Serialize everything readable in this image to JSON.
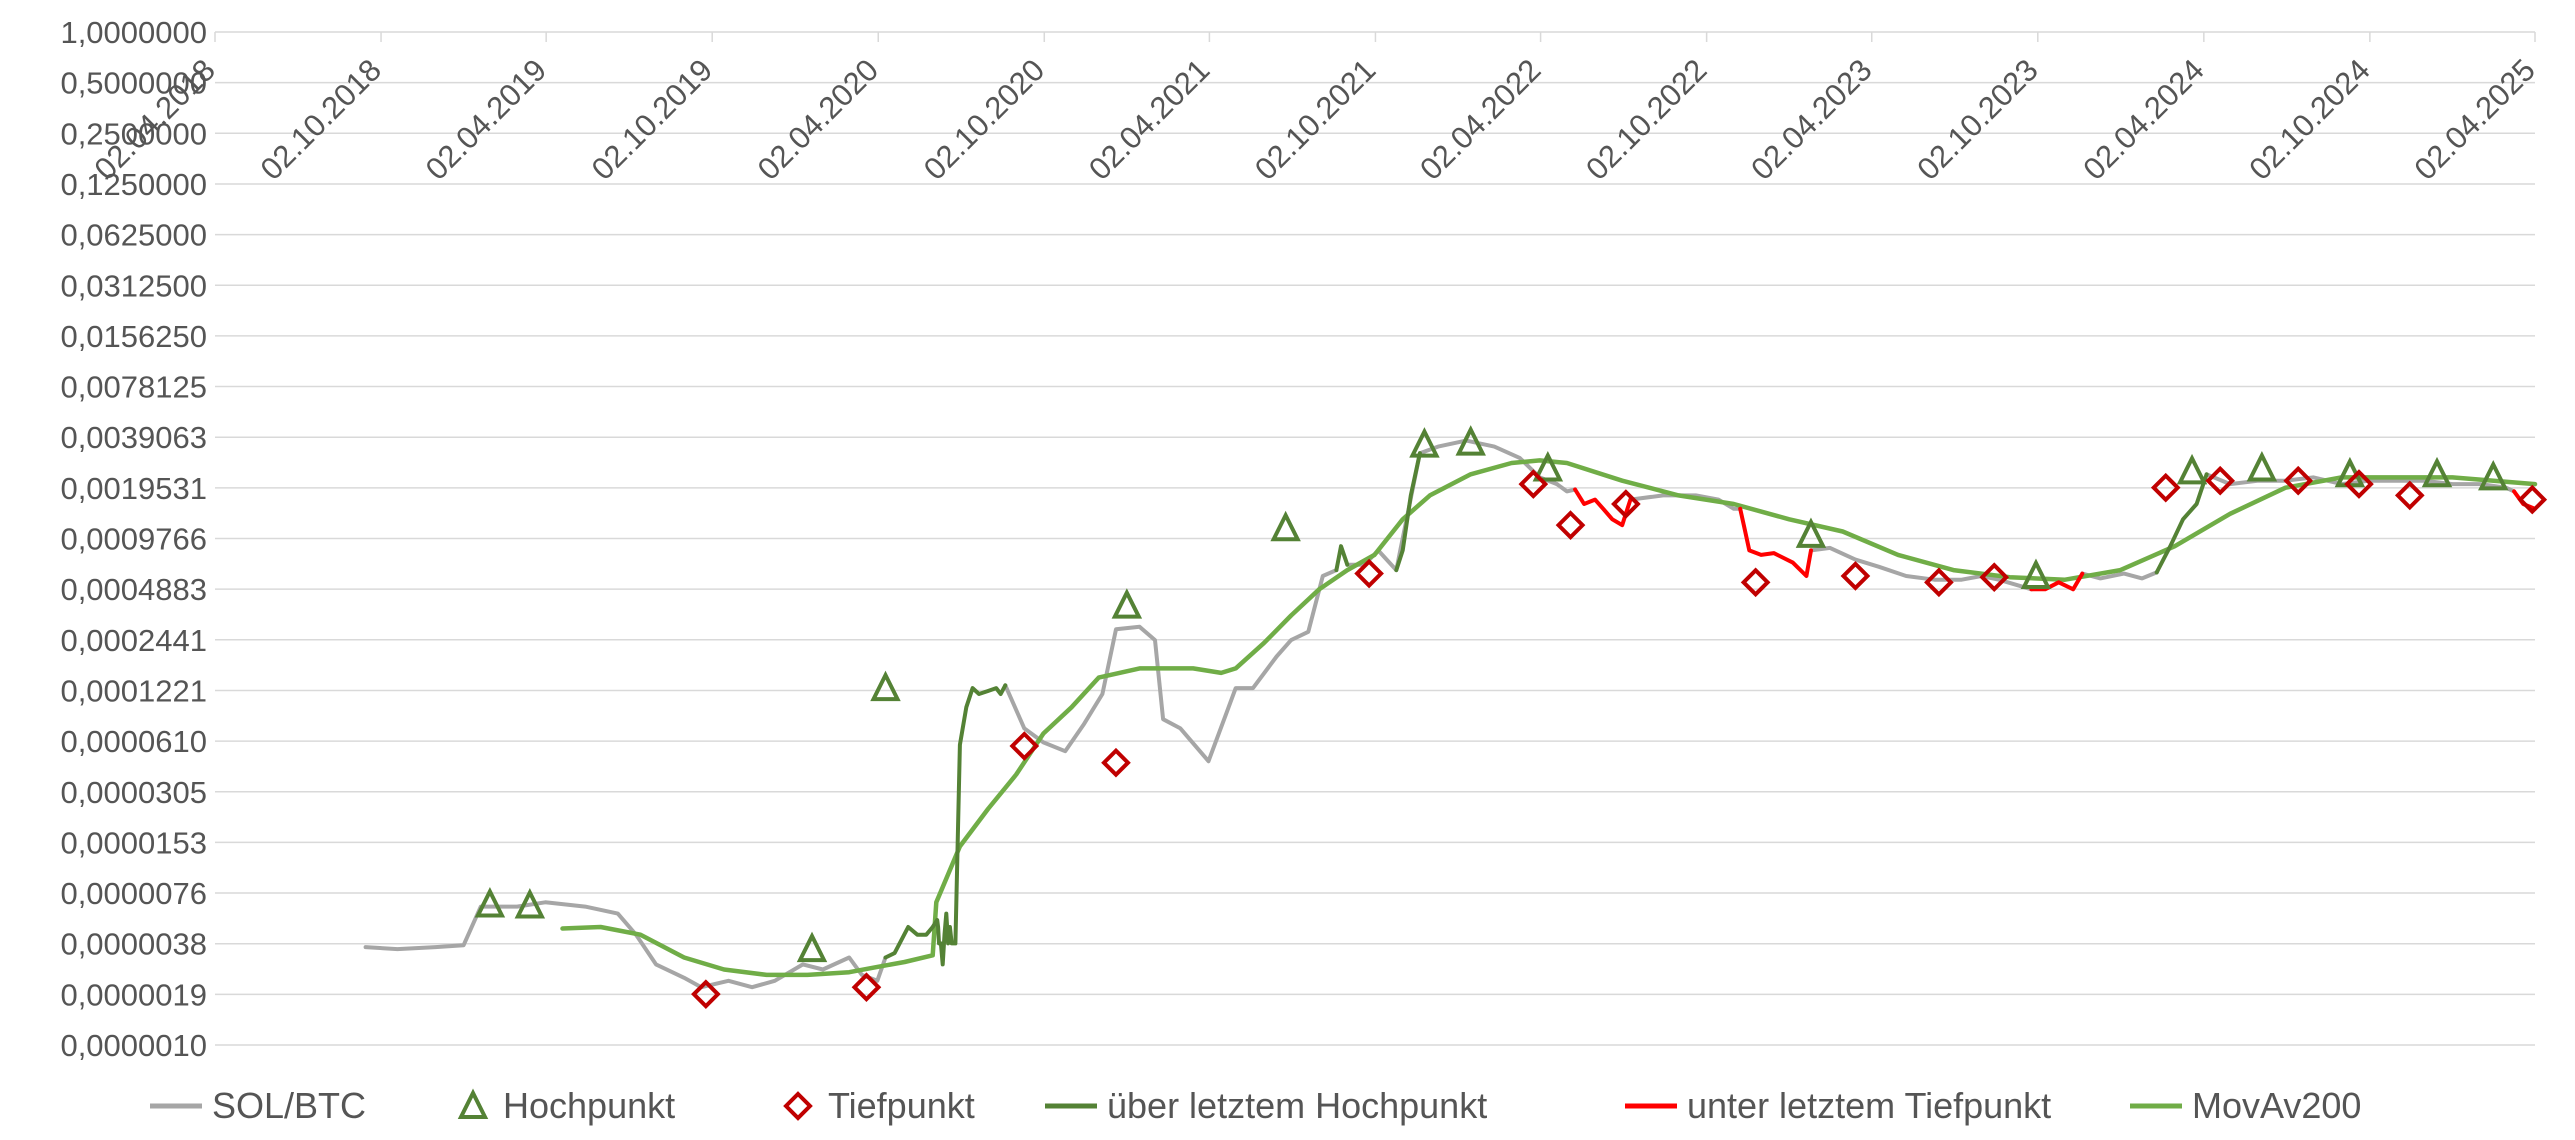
{
  "chart_data": {
    "type": "line",
    "title": "",
    "xlabel": "",
    "ylabel": "",
    "y_scale": "log2",
    "ylim": [
      1e-06,
      1.0
    ],
    "xlim": [
      "02.04.2018",
      "02.04.2025"
    ],
    "grid": true,
    "legend_position": "bottom",
    "y_ticks": [
      "1,0000000",
      "0,5000000",
      "0,2500000",
      "0,1250000",
      "0,0625000",
      "0,0312500",
      "0,0156250",
      "0,0078125",
      "0,0039063",
      "0,0019531",
      "0,0009766",
      "0,0004883",
      "0,0002441",
      "0,0001221",
      "0,0000610",
      "0,0000305",
      "0,0000153",
      "0,0000076",
      "0,0000038",
      "0,0000019",
      "0,0000010"
    ],
    "x_ticks": [
      "02.04.2018",
      "02.10.2018",
      "02.04.2019",
      "02.10.2019",
      "02.04.2020",
      "02.10.2020",
      "02.04.2021",
      "02.10.2021",
      "02.04.2022",
      "02.10.2022",
      "02.04.2023",
      "02.10.2023",
      "02.04.2024",
      "02.10.2024",
      "02.04.2025"
    ],
    "colors": {
      "price": "#a6a6a6",
      "high_marker": "#548235",
      "low_marker": "#c00000",
      "above_high": "#548235",
      "below_low": "#ff0000",
      "movav": "#70ad47",
      "grid": "#d9d9d9"
    },
    "series": [
      {
        "name": "SOL/BTC",
        "role": "price",
        "x": [
          "2018-09-15",
          "2018-10-20",
          "2018-12-01",
          "2019-01-01",
          "2019-01-20",
          "2019-03-01",
          "2019-04-01",
          "2019-05-15",
          "2019-06-20",
          "2019-07-10",
          "2019-08-01",
          "2019-09-01",
          "2019-09-20",
          "2019-10-20",
          "2019-11-15",
          "2019-12-10",
          "2020-01-10",
          "2020-02-01",
          "2020-03-01",
          "2020-03-15",
          "2020-04-01",
          "2020-04-10"
        ],
        "y": [
          3.8e-06,
          3.7e-06,
          3.8e-06,
          3.9e-06,
          6.6e-06,
          6.6e-06,
          7e-06,
          6.6e-06,
          6e-06,
          4.5e-06,
          3e-06,
          2.5e-06,
          2.2e-06,
          2.4e-06,
          2.2e-06,
          2.4e-06,
          3e-06,
          2.8e-06,
          3.3e-06,
          2.6e-06,
          2.4e-06,
          3.3e-06
        ]
      },
      {
        "name": "SOL/BTC",
        "role": "price",
        "x": [
          "2020-08-20",
          "2020-09-10",
          "2020-10-01",
          "2020-10-25",
          "2020-11-15",
          "2020-12-05",
          "2020-12-20",
          "2021-01-15",
          "2021-02-01",
          "2021-02-10",
          "2021-03-01",
          "2021-04-01",
          "2021-04-20",
          "2021-05-01",
          "2021-05-20",
          "2021-06-15",
          "2021-07-01",
          "2021-07-20",
          "2021-08-05",
          "2021-08-20"
        ],
        "y": [
          0.000135,
          7.5e-05,
          6.2e-05,
          5.5e-05,
          8e-05,
          0.00012,
          0.00029,
          0.0003,
          0.00025,
          8.5e-05,
          7.5e-05,
          4.8e-05,
          9e-05,
          0.00013,
          0.00013,
          0.0002,
          0.00025,
          0.00028,
          0.0006,
          0.00065
        ]
      },
      {
        "name": "SOL/BTC",
        "role": "price",
        "x": [
          "2021-09-01",
          "2021-09-20",
          "2021-10-05",
          "2021-10-25",
          "2021-11-20",
          "2021-12-10",
          "2022-01-10",
          "2022-02-10",
          "2022-03-10",
          "2022-04-01",
          "2022-04-20"
        ],
        "y": [
          0.0007,
          0.0007,
          0.00085,
          0.00065,
          0.0032,
          0.0035,
          0.0038,
          0.0035,
          0.003,
          0.0023,
          0.0021
        ]
      },
      {
        "name": "SOL/BTC",
        "role": "price",
        "x": [
          "2022-04-20",
          "2022-05-01",
          "2022-05-10"
        ],
        "y": [
          0.0021,
          0.0019,
          0.00195
        ]
      },
      {
        "name": "SOL/BTC",
        "role": "price",
        "x": [
          "2022-07-10",
          "2022-08-15",
          "2022-09-20",
          "2022-10-15",
          "2022-11-01",
          "2022-11-08"
        ],
        "y": [
          0.0017,
          0.0018,
          0.0018,
          0.0017,
          0.0015,
          0.0015
        ]
      },
      {
        "name": "SOL/BTC",
        "role": "price",
        "x": [
          "2023-01-25",
          "2023-02-15",
          "2023-03-15",
          "2023-04-10",
          "2023-05-10",
          "2023-06-10",
          "2023-07-10",
          "2023-08-01",
          "2023-08-20",
          "2023-09-25"
        ],
        "y": [
          0.00085,
          0.00088,
          0.00075,
          0.00068,
          0.0006,
          0.00057,
          0.00057,
          0.0006,
          0.00057,
          0.0005
        ]
      },
      {
        "name": "SOL/BTC",
        "role": "price",
        "x": [
          "2023-11-20",
          "2023-12-10",
          "2024-01-05",
          "2024-01-25",
          "2024-02-10"
        ],
        "y": [
          0.00062,
          0.00058,
          0.00062,
          0.00058,
          0.00063
        ]
      },
      {
        "name": "SOL/BTC",
        "role": "price",
        "x": [
          "2024-04-05",
          "2024-05-01",
          "2024-06-01",
          "2024-07-01",
          "2024-08-01",
          "2024-09-01",
          "2024-10-01",
          "2024-11-01",
          "2024-12-01",
          "2025-01-01",
          "2025-02-01",
          "2025-03-01",
          "2025-03-10"
        ],
        "y": [
          0.0024,
          0.0021,
          0.0022,
          0.0022,
          0.0023,
          0.0021,
          0.0022,
          0.0022,
          0.0022,
          0.0021,
          0.0021,
          0.002,
          0.0019
        ]
      },
      {
        "name": "über letztem Hochpunkt",
        "role": "above_high",
        "x": [
          "2020-04-10",
          "2020-04-20",
          "2020-05-05",
          "2020-05-15",
          "2020-05-25",
          "2020-06-01",
          "2020-06-06",
          "2020-06-07",
          "2020-06-08",
          "2020-06-10",
          "2020-06-12",
          "2020-06-14",
          "2020-06-16",
          "2020-06-18",
          "2020-06-20",
          "2020-06-22",
          "2020-06-26",
          "2020-07-01",
          "2020-07-08",
          "2020-07-15",
          "2020-07-22",
          "2020-08-01",
          "2020-08-10",
          "2020-08-15",
          "2020-08-20"
        ],
        "y": [
          3.3e-06,
          3.5e-06,
          5e-06,
          4.5e-06,
          4.5e-06,
          5e-06,
          5.5e-06,
          5e-06,
          4e-06,
          4e-06,
          3e-06,
          4.5e-06,
          6e-06,
          4e-06,
          5e-06,
          4e-06,
          4e-06,
          6e-05,
          0.0001,
          0.00013,
          0.00012,
          0.000125,
          0.00013,
          0.00012,
          0.000135
        ]
      },
      {
        "name": "über letztem Hochpunkt",
        "role": "above_high",
        "x": [
          "2021-08-20",
          "2021-08-25",
          "2021-09-01"
        ],
        "y": [
          0.00065,
          0.0009,
          0.0007
        ]
      },
      {
        "name": "über letztem Hochpunkt",
        "role": "above_high",
        "x": [
          "2021-10-25",
          "2021-11-01",
          "2021-11-10",
          "2021-11-20"
        ],
        "y": [
          0.00065,
          0.00085,
          0.0018,
          0.0032
        ]
      },
      {
        "name": "über letztem Hochpunkt",
        "role": "above_high",
        "x": [
          "2024-02-10",
          "2024-02-25",
          "2024-03-10",
          "2024-03-25",
          "2024-04-05"
        ],
        "y": [
          0.00063,
          0.0009,
          0.0013,
          0.0016,
          0.0024
        ]
      },
      {
        "name": "unter letztem Tiefpunkt",
        "role": "below_low",
        "x": [
          "2022-05-10",
          "2022-05-20",
          "2022-06-01",
          "2022-06-10",
          "2022-06-20",
          "2022-07-01",
          "2022-07-10"
        ],
        "y": [
          0.00195,
          0.0016,
          0.0017,
          0.0015,
          0.0013,
          0.0012,
          0.0017
        ]
      },
      {
        "name": "unter letztem Tiefpunkt",
        "role": "below_low",
        "x": [
          "2022-11-08",
          "2022-11-12",
          "2022-11-18",
          "2022-12-01",
          "2022-12-15",
          "2023-01-05",
          "2023-01-20",
          "2023-01-25"
        ],
        "y": [
          0.0015,
          0.0012,
          0.00085,
          0.0008,
          0.00082,
          0.00072,
          0.0006,
          0.00085
        ]
      },
      {
        "name": "unter letztem Tiefpunkt",
        "role": "below_low",
        "x": [
          "2023-09-25",
          "2023-10-10",
          "2023-10-25",
          "2023-11-10",
          "2023-11-20"
        ],
        "y": [
          0.0005,
          0.0005,
          0.00055,
          0.0005,
          0.00062
        ]
      },
      {
        "name": "unter letztem Tiefpunkt",
        "role": "below_low",
        "x": [
          "2025-03-10",
          "2025-03-20",
          "2025-04-02"
        ],
        "y": [
          0.0019,
          0.0016,
          0.0015
        ]
      },
      {
        "name": "MovAv200",
        "role": "movav",
        "x": [
          "2019-04-20",
          "2019-06-01",
          "2019-07-15",
          "2019-09-01",
          "2019-10-15",
          "2019-12-01",
          "2020-01-15",
          "2020-03-01",
          "2020-04-01",
          "2020-05-01",
          "2020-06-01",
          "2020-06-05",
          "2020-07-01",
          "2020-08-01",
          "2020-09-01",
          "2020-10-01",
          "2020-11-01",
          "2020-12-01",
          "2021-01-15",
          "2021-02-15",
          "2021-03-15",
          "2021-04-15",
          "2021-05-01",
          "2021-06-01",
          "2021-07-01",
          "2021-08-01",
          "2021-09-01",
          "2021-10-01",
          "2021-11-01",
          "2021-12-01",
          "2022-01-15",
          "2022-03-01",
          "2022-04-01",
          "2022-05-01",
          "2022-07-01",
          "2022-09-01",
          "2022-11-01",
          "2023-01-01",
          "2023-03-01",
          "2023-05-01",
          "2023-07-01",
          "2023-09-01",
          "2023-11-01",
          "2024-01-01",
          "2024-03-01",
          "2024-05-01",
          "2024-07-01",
          "2024-09-01",
          "2024-11-01",
          "2025-01-01",
          "2025-04-02"
        ],
        "y": [
          4.9e-06,
          5e-06,
          4.5e-06,
          3.3e-06,
          2.8e-06,
          2.6e-06,
          2.6e-06,
          2.7e-06,
          2.9e-06,
          3.1e-06,
          3.4e-06,
          7e-06,
          1.5e-05,
          2.5e-05,
          4e-05,
          7e-05,
          0.0001,
          0.00015,
          0.00017,
          0.00017,
          0.00017,
          0.00016,
          0.00017,
          0.00024,
          0.00035,
          0.0005,
          0.00065,
          0.0008,
          0.0013,
          0.0018,
          0.0024,
          0.0028,
          0.0029,
          0.0028,
          0.0022,
          0.0018,
          0.0016,
          0.0013,
          0.0011,
          0.0008,
          0.00065,
          0.00059,
          0.00057,
          0.00065,
          0.0009,
          0.0014,
          0.002,
          0.0023,
          0.0023,
          0.0023,
          0.0021
        ]
      }
    ],
    "markers": {
      "Hochpunkt": {
        "x": [
          "2019-01-30",
          "2019-03-15",
          "2020-01-20",
          "2020-04-10",
          "2021-01-01",
          "2021-06-25",
          "2021-11-25",
          "2022-01-15",
          "2022-04-10",
          "2023-01-25",
          "2023-09-30",
          "2024-03-20",
          "2024-06-05",
          "2024-09-10",
          "2024-12-15",
          "2025-02-15"
        ],
        "y": [
          6.8e-06,
          6.7e-06,
          3.7e-06,
          0.00013,
          0.0004,
          0.00115,
          0.0036,
          0.0037,
          0.0026,
          0.00105,
          0.0006,
          0.0025,
          0.0026,
          0.0024,
          0.0024,
          0.0023
        ]
      },
      "Tiefpunkt": {
        "x": [
          "2019-09-25",
          "2020-03-20",
          "2020-09-10",
          "2020-12-20",
          "2021-09-25",
          "2022-03-25",
          "2022-05-05",
          "2022-07-05",
          "2022-11-25",
          "2023-03-15",
          "2023-06-15",
          "2023-08-15",
          "2024-02-20",
          "2024-04-20",
          "2024-07-15",
          "2024-09-20",
          "2024-11-15",
          "2025-03-30"
        ],
        "y": [
          2e-06,
          2.2e-06,
          5.9e-05,
          4.7e-05,
          0.00062,
          0.0021,
          0.0012,
          0.0016,
          0.00055,
          0.0006,
          0.00055,
          0.00059,
          0.002,
          0.0022,
          0.0022,
          0.0021,
          0.0018,
          0.0017
        ]
      }
    }
  },
  "legend": {
    "items": [
      {
        "label": "SOL/BTC",
        "type": "line",
        "color": "#a6a6a6"
      },
      {
        "label": "Hochpunkt",
        "type": "triangle",
        "color": "#548235"
      },
      {
        "label": "Tiefpunkt",
        "type": "diamond",
        "color": "#c00000"
      },
      {
        "label": "über letztem Hochpunkt",
        "type": "line",
        "color": "#548235"
      },
      {
        "label": "unter letztem Tiefpunkt",
        "type": "line",
        "color": "#ff0000"
      },
      {
        "label": "MovAv200",
        "type": "line",
        "color": "#70ad47"
      }
    ]
  }
}
